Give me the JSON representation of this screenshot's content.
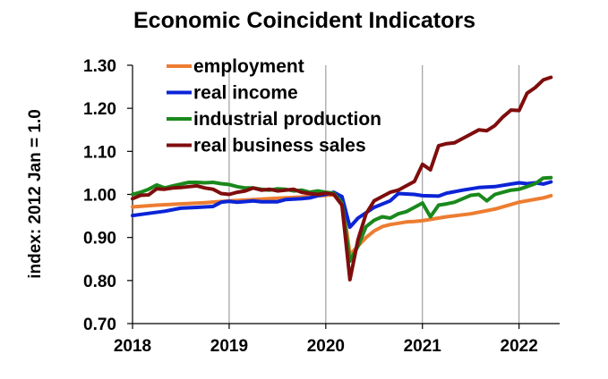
{
  "chart_data": {
    "type": "line",
    "title": "Economic Coincident Indicators",
    "xlabel": "",
    "ylabel": "index: 2012 Jan = 1.0",
    "ylim": [
      0.7,
      1.3
    ],
    "xlim": [
      2018.0,
      2022.42
    ],
    "yticks": [
      "0.70",
      "0.80",
      "0.90",
      "1.00",
      "1.10",
      "1.20",
      "1.30"
    ],
    "xticks": [
      "2018",
      "2019",
      "2020",
      "2021",
      "2022"
    ],
    "grid": "vertical lines at year boundaries",
    "legend": "top-left",
    "series": [
      {
        "name": "employment",
        "color": "#ed7d31",
        "points": [
          [
            2018.0,
            0.971
          ],
          [
            2018.25,
            0.975
          ],
          [
            2018.5,
            0.978
          ],
          [
            2018.75,
            0.981
          ],
          [
            2019.0,
            0.985
          ],
          [
            2019.25,
            0.988
          ],
          [
            2019.5,
            0.991
          ],
          [
            2019.75,
            0.994
          ],
          [
            2020.0,
            0.998
          ],
          [
            2020.083,
            0.999
          ],
          [
            2020.167,
            0.995
          ],
          [
            2020.25,
            0.86
          ],
          [
            2020.333,
            0.88
          ],
          [
            2020.417,
            0.9
          ],
          [
            2020.5,
            0.915
          ],
          [
            2020.583,
            0.925
          ],
          [
            2020.667,
            0.93
          ],
          [
            2020.75,
            0.933
          ],
          [
            2020.833,
            0.936
          ],
          [
            2020.917,
            0.937
          ],
          [
            2021.0,
            0.939
          ],
          [
            2021.25,
            0.948
          ],
          [
            2021.5,
            0.955
          ],
          [
            2021.75,
            0.966
          ],
          [
            2022.0,
            0.982
          ],
          [
            2022.25,
            0.992
          ],
          [
            2022.33,
            0.997
          ]
        ]
      },
      {
        "name": "real income",
        "color": "#0b24d6",
        "points": [
          [
            2018.0,
            0.951
          ],
          [
            2018.167,
            0.956
          ],
          [
            2018.333,
            0.961
          ],
          [
            2018.5,
            0.968
          ],
          [
            2018.667,
            0.97
          ],
          [
            2018.833,
            0.972
          ],
          [
            2018.917,
            0.982
          ],
          [
            2019.0,
            0.984
          ],
          [
            2019.083,
            0.982
          ],
          [
            2019.25,
            0.985
          ],
          [
            2019.333,
            0.983
          ],
          [
            2019.5,
            0.983
          ],
          [
            2019.583,
            0.988
          ],
          [
            2019.75,
            0.99
          ],
          [
            2019.833,
            0.992
          ],
          [
            2019.917,
            0.997
          ],
          [
            2020.0,
            1.0
          ],
          [
            2020.083,
            1.005
          ],
          [
            2020.167,
            0.995
          ],
          [
            2020.25,
            0.924
          ],
          [
            2020.333,
            0.945
          ],
          [
            2020.5,
            0.97
          ],
          [
            2020.667,
            0.985
          ],
          [
            2020.75,
            1.002
          ],
          [
            2020.917,
            1.0
          ],
          [
            2021.0,
            0.997
          ],
          [
            2021.167,
            0.996
          ],
          [
            2021.25,
            1.003
          ],
          [
            2021.417,
            1.01
          ],
          [
            2021.583,
            1.016
          ],
          [
            2021.75,
            1.018
          ],
          [
            2021.917,
            1.024
          ],
          [
            2022.0,
            1.027
          ],
          [
            2022.083,
            1.025
          ],
          [
            2022.167,
            1.027
          ],
          [
            2022.25,
            1.024
          ],
          [
            2022.33,
            1.029
          ]
        ]
      },
      {
        "name": "industrial production",
        "color": "#1a891c",
        "points": [
          [
            2018.0,
            1.0
          ],
          [
            2018.083,
            1.005
          ],
          [
            2018.167,
            1.012
          ],
          [
            2018.25,
            1.022
          ],
          [
            2018.333,
            1.015
          ],
          [
            2018.417,
            1.02
          ],
          [
            2018.5,
            1.024
          ],
          [
            2018.583,
            1.028
          ],
          [
            2018.667,
            1.028
          ],
          [
            2018.75,
            1.027
          ],
          [
            2018.833,
            1.028
          ],
          [
            2018.917,
            1.025
          ],
          [
            2019.0,
            1.023
          ],
          [
            2019.083,
            1.018
          ],
          [
            2019.167,
            1.015
          ],
          [
            2019.25,
            1.015
          ],
          [
            2019.333,
            1.012
          ],
          [
            2019.417,
            1.01
          ],
          [
            2019.5,
            1.013
          ],
          [
            2019.583,
            1.012
          ],
          [
            2019.667,
            1.008
          ],
          [
            2019.75,
            1.01
          ],
          [
            2019.833,
            1.005
          ],
          [
            2019.917,
            1.008
          ],
          [
            2020.0,
            1.005
          ],
          [
            2020.083,
            1.003
          ],
          [
            2020.167,
            0.98
          ],
          [
            2020.25,
            0.845
          ],
          [
            2020.333,
            0.88
          ],
          [
            2020.417,
            0.925
          ],
          [
            2020.5,
            0.94
          ],
          [
            2020.583,
            0.948
          ],
          [
            2020.667,
            0.945
          ],
          [
            2020.75,
            0.955
          ],
          [
            2020.833,
            0.96
          ],
          [
            2020.917,
            0.97
          ],
          [
            2021.0,
            0.98
          ],
          [
            2021.083,
            0.948
          ],
          [
            2021.167,
            0.975
          ],
          [
            2021.25,
            0.978
          ],
          [
            2021.333,
            0.982
          ],
          [
            2021.417,
            0.99
          ],
          [
            2021.5,
            0.998
          ],
          [
            2021.583,
            1.0
          ],
          [
            2021.667,
            0.985
          ],
          [
            2021.75,
            1.0
          ],
          [
            2021.833,
            1.005
          ],
          [
            2021.917,
            1.01
          ],
          [
            2022.0,
            1.012
          ],
          [
            2022.083,
            1.018
          ],
          [
            2022.167,
            1.025
          ],
          [
            2022.25,
            1.038
          ],
          [
            2022.33,
            1.039
          ]
        ]
      },
      {
        "name": "real business sales",
        "color": "#7f0d0d",
        "points": [
          [
            2018.0,
            0.99
          ],
          [
            2018.083,
            0.998
          ],
          [
            2018.167,
            0.999
          ],
          [
            2018.25,
            1.013
          ],
          [
            2018.333,
            1.012
          ],
          [
            2018.417,
            1.015
          ],
          [
            2018.5,
            1.016
          ],
          [
            2018.583,
            1.018
          ],
          [
            2018.667,
            1.02
          ],
          [
            2018.75,
            1.015
          ],
          [
            2018.833,
            1.012
          ],
          [
            2018.917,
            1.002
          ],
          [
            2019.0,
            1.0
          ],
          [
            2019.083,
            1.005
          ],
          [
            2019.167,
            1.008
          ],
          [
            2019.25,
            1.015
          ],
          [
            2019.333,
            1.01
          ],
          [
            2019.417,
            1.012
          ],
          [
            2019.5,
            1.008
          ],
          [
            2019.583,
            1.01
          ],
          [
            2019.667,
            1.012
          ],
          [
            2019.75,
            1.005
          ],
          [
            2019.833,
            1.002
          ],
          [
            2019.917,
            1.0
          ],
          [
            2020.0,
            1.003
          ],
          [
            2020.083,
            1.0
          ],
          [
            2020.167,
            0.975
          ],
          [
            2020.25,
            0.802
          ],
          [
            2020.333,
            0.895
          ],
          [
            2020.417,
            0.955
          ],
          [
            2020.5,
            0.985
          ],
          [
            2020.583,
            0.995
          ],
          [
            2020.667,
            1.005
          ],
          [
            2020.75,
            1.01
          ],
          [
            2020.833,
            1.02
          ],
          [
            2020.917,
            1.03
          ],
          [
            2021.0,
            1.07
          ],
          [
            2021.083,
            1.057
          ],
          [
            2021.167,
            1.113
          ],
          [
            2021.25,
            1.118
          ],
          [
            2021.333,
            1.12
          ],
          [
            2021.417,
            1.13
          ],
          [
            2021.5,
            1.14
          ],
          [
            2021.583,
            1.15
          ],
          [
            2021.667,
            1.148
          ],
          [
            2021.75,
            1.16
          ],
          [
            2021.833,
            1.18
          ],
          [
            2021.917,
            1.196
          ],
          [
            2022.0,
            1.195
          ],
          [
            2022.083,
            1.235
          ],
          [
            2022.167,
            1.248
          ],
          [
            2022.25,
            1.266
          ],
          [
            2022.33,
            1.272
          ]
        ]
      }
    ]
  }
}
